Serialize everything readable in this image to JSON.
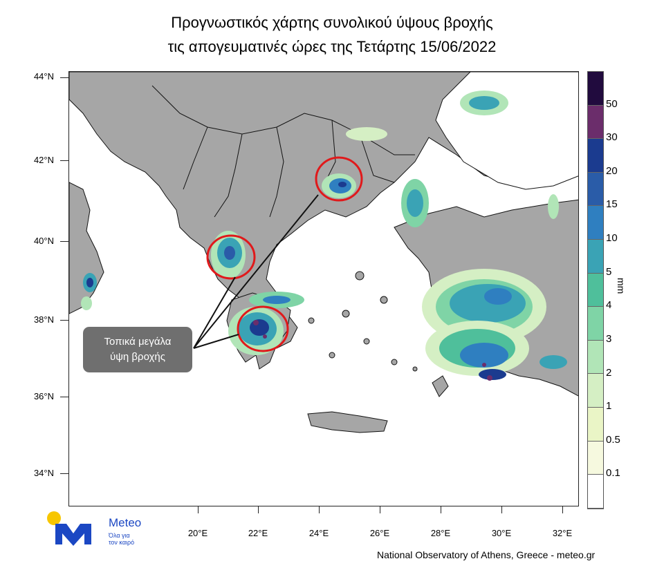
{
  "title": {
    "line1": "Προγνωστικός χάρτης συνολικού ύψους βροχής",
    "line2": "τις απογευματινές ώρες της Τετάρτης 15/06/2022"
  },
  "axes": {
    "lat_labels": [
      "44°N",
      "42°N",
      "40°N",
      "38°N",
      "36°N",
      "34°N"
    ],
    "lon_labels": [
      "20°E",
      "22°E",
      "24°E",
      "26°E",
      "28°E",
      "30°E",
      "32°E"
    ]
  },
  "colorbar": {
    "unit": "mm",
    "levels": [
      "0.1",
      "0.5",
      "1",
      "2",
      "3",
      "4",
      "5",
      "10",
      "15",
      "20",
      "30",
      "50"
    ],
    "colors": [
      "#ffffff",
      "#f6f9df",
      "#eaf5c6",
      "#d5efc4",
      "#b1e5b7",
      "#7fd4a6",
      "#4fbf9b",
      "#3aa3b5",
      "#2f7fc0",
      "#2a5ca8",
      "#1b3b8f",
      "#6b2d6b",
      "#210b3e"
    ]
  },
  "annotation": {
    "line1": "Τοπικά μεγάλα",
    "line2": "ύψη βροχής"
  },
  "logo": {
    "name": "Meteo",
    "tagline_1": "Όλα για",
    "tagline_2": "τον καιρό",
    "colors": {
      "sun": "#f7c600",
      "mark": "#1b47c3"
    }
  },
  "credit": "National Observatory of Athens, Greece - meteo.gr"
}
